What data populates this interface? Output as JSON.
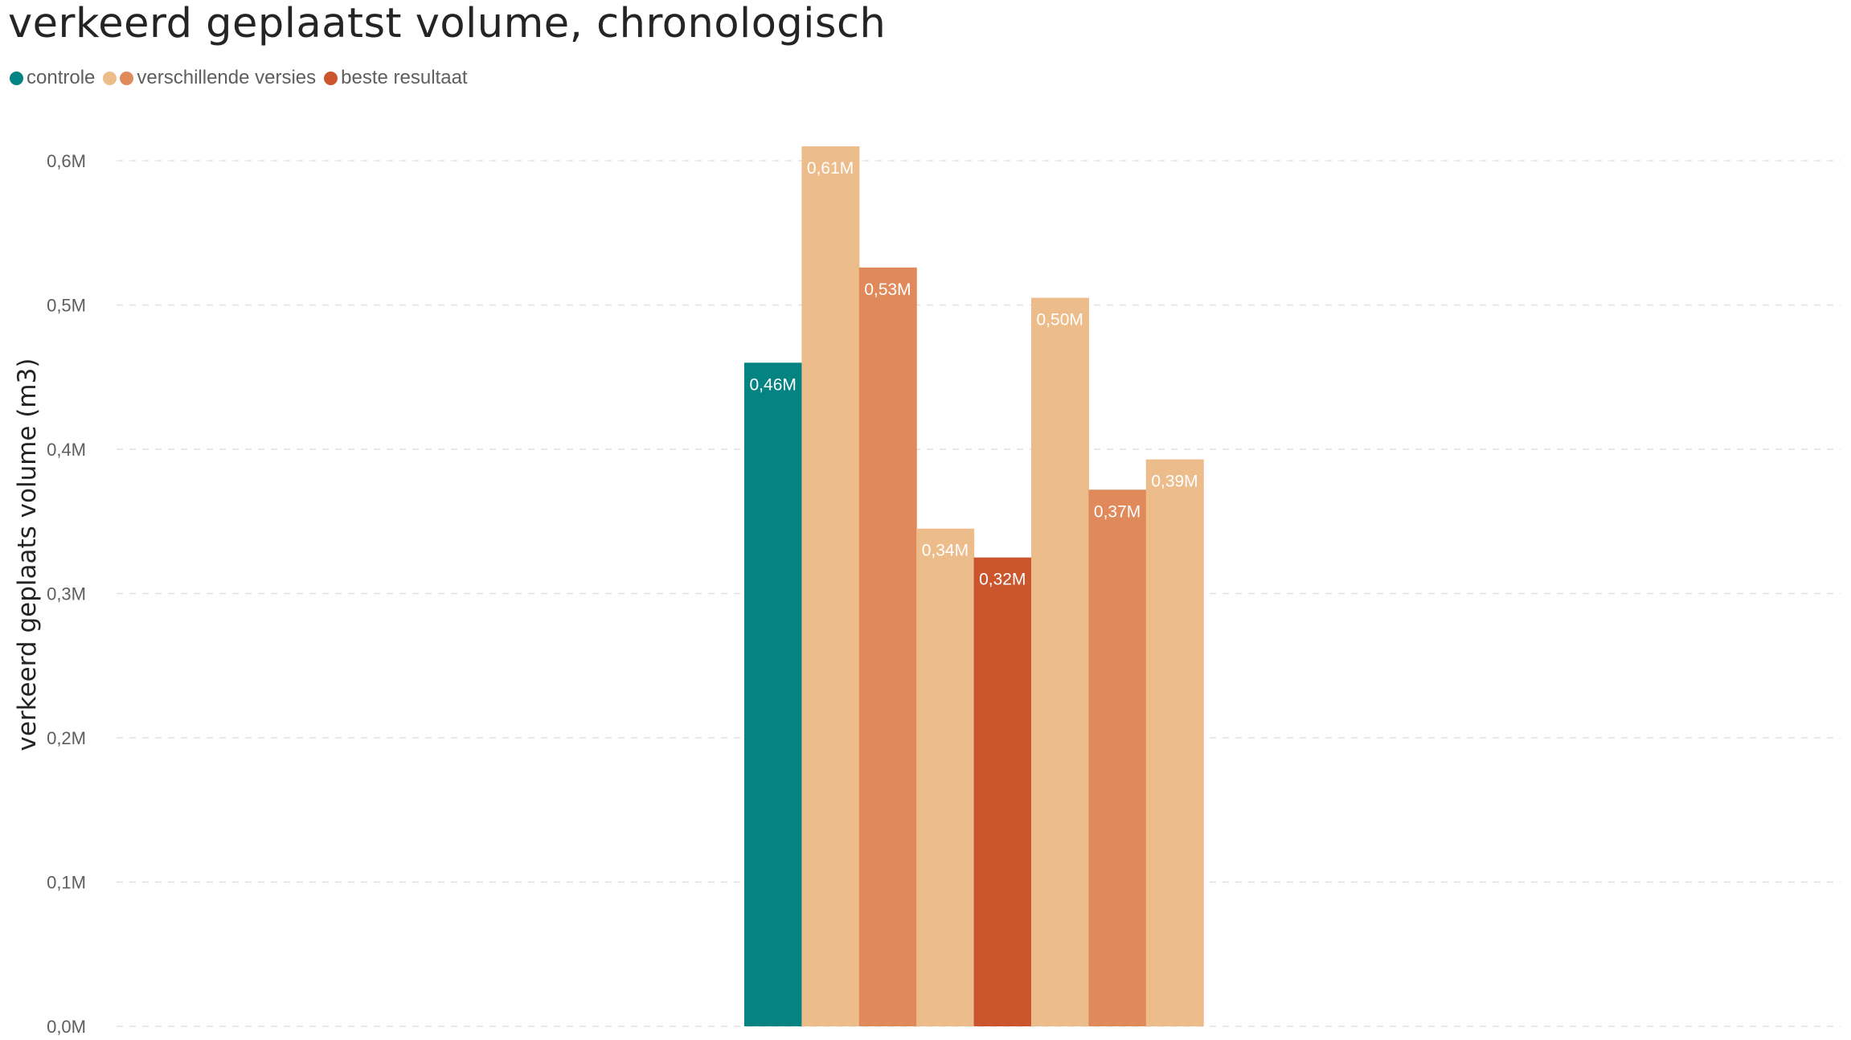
{
  "title": "verkeerd geplaatst volume, chronologisch",
  "legend": [
    {
      "label": "controle",
      "colors": [
        "#038381"
      ]
    },
    {
      "label": "verschillende versies",
      "colors": [
        "#edbc8b",
        "#e0895a"
      ]
    },
    {
      "label": "beste resultaat",
      "colors": [
        "#cb562d"
      ]
    }
  ],
  "chart_data": {
    "type": "bar",
    "title": "verkeerd geplaatst volume, chronologisch",
    "ylabel": "verkeerd geplaats volume (m3)",
    "xlabel": "",
    "ylim": [
      0,
      0.6
    ],
    "yticks": [
      "0,0M",
      "0,1M",
      "0,2M",
      "0,3M",
      "0,4M",
      "0,5M",
      "0,6M"
    ],
    "grid": true,
    "legend_position": "top-left",
    "values": [
      0.46,
      0.61,
      0.526,
      0.345,
      0.325,
      0.505,
      0.372,
      0.393
    ],
    "labels": [
      "0,46M",
      "0,61M",
      "0,53M",
      "0,34M",
      "0,32M",
      "0,50M",
      "0,37M",
      "0,39M"
    ],
    "colors": [
      "#038381",
      "#edbc8b",
      "#e0895a",
      "#edbc8b",
      "#cb562d",
      "#edbc8b",
      "#e0895a",
      "#edbc8b"
    ]
  }
}
